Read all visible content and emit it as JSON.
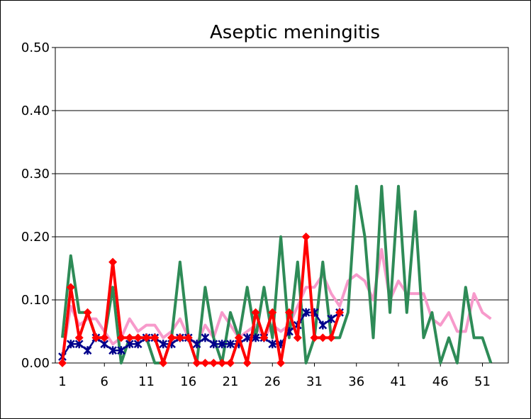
{
  "chart_data": {
    "type": "line",
    "title": "Aseptic meningitis",
    "xlabel": "",
    "ylabel": "",
    "ylim": [
      0,
      0.5
    ],
    "xlim": [
      1,
      53
    ],
    "y_ticks": [
      "0.00",
      "0.10",
      "0.20",
      "0.30",
      "0.40",
      "0.50"
    ],
    "x_ticks": [
      "1",
      "6",
      "11",
      "16",
      "21",
      "26",
      "31",
      "36",
      "41",
      "46",
      "51"
    ],
    "grid": "horizontal",
    "legend": "none",
    "series": [
      {
        "color": "#f79acb",
        "marker": "none",
        "x": [
          1,
          2,
          3,
          4,
          5,
          6,
          7,
          8,
          9,
          10,
          11,
          12,
          13,
          14,
          15,
          16,
          17,
          18,
          19,
          20,
          21,
          22,
          23,
          24,
          25,
          26,
          27,
          28,
          29,
          30,
          31,
          32,
          33,
          34,
          35,
          36,
          37,
          38,
          39,
          40,
          41,
          42,
          43,
          44,
          45,
          46,
          47,
          48,
          49,
          50,
          51,
          52
        ],
        "values": [
          0.01,
          0.09,
          0.06,
          0.07,
          0.07,
          0.05,
          0.03,
          0.04,
          0.07,
          0.05,
          0.06,
          0.06,
          0.04,
          0.05,
          0.07,
          0.04,
          0.03,
          0.06,
          0.04,
          0.08,
          0.06,
          0.04,
          0.05,
          0.06,
          0.04,
          0.06,
          0.05,
          0.06,
          0.09,
          0.12,
          0.12,
          0.14,
          0.11,
          0.09,
          0.13,
          0.14,
          0.13,
          0.1,
          0.18,
          0.1,
          0.13,
          0.11,
          0.11,
          0.11,
          0.07,
          0.06,
          0.08,
          0.05,
          0.05,
          0.11,
          0.08,
          0.07
        ]
      },
      {
        "color": "#2e8b57",
        "marker": "none",
        "x": [
          1,
          2,
          3,
          4,
          5,
          6,
          7,
          8,
          9,
          10,
          11,
          12,
          13,
          14,
          15,
          16,
          17,
          18,
          19,
          20,
          21,
          22,
          23,
          24,
          25,
          26,
          27,
          28,
          29,
          30,
          31,
          32,
          33,
          34,
          35,
          36,
          37,
          38,
          39,
          40,
          41,
          42,
          43,
          44,
          45,
          46,
          47,
          48,
          49,
          50,
          51,
          52
        ],
        "values": [
          0.04,
          0.17,
          0.08,
          0.08,
          0.04,
          0.04,
          0.12,
          0.0,
          0.04,
          0.04,
          0.04,
          0.0,
          0.0,
          0.04,
          0.16,
          0.04,
          0.0,
          0.12,
          0.04,
          0.0,
          0.08,
          0.04,
          0.12,
          0.04,
          0.12,
          0.04,
          0.2,
          0.04,
          0.16,
          0.0,
          0.04,
          0.16,
          0.04,
          0.04,
          0.08,
          0.28,
          0.2,
          0.04,
          0.28,
          0.08,
          0.28,
          0.08,
          0.24,
          0.04,
          0.08,
          0.0,
          0.04,
          0.0,
          0.12,
          0.04,
          0.04,
          0.0
        ]
      },
      {
        "color": "#00008b",
        "marker": "star",
        "x": [
          1,
          2,
          3,
          4,
          5,
          6,
          7,
          8,
          9,
          10,
          11,
          12,
          13,
          14,
          15,
          16,
          17,
          18,
          19,
          20,
          21,
          22,
          23,
          24,
          25,
          26,
          27,
          28,
          29,
          30,
          31,
          32,
          33,
          34
        ],
        "values": [
          0.01,
          0.03,
          0.03,
          0.02,
          0.04,
          0.03,
          0.02,
          0.02,
          0.03,
          0.03,
          0.04,
          0.04,
          0.03,
          0.03,
          0.04,
          0.04,
          0.03,
          0.04,
          0.03,
          0.03,
          0.03,
          0.03,
          0.04,
          0.04,
          0.04,
          0.03,
          0.03,
          0.05,
          0.06,
          0.08,
          0.08,
          0.06,
          0.07,
          0.08
        ]
      },
      {
        "color": "#ff0000",
        "marker": "diamond",
        "x": [
          1,
          2,
          3,
          4,
          5,
          6,
          7,
          8,
          9,
          10,
          11,
          12,
          13,
          14,
          15,
          16,
          17,
          18,
          19,
          20,
          21,
          22,
          23,
          24,
          25,
          26,
          27,
          28,
          29,
          30,
          31,
          32,
          33,
          34
        ],
        "values": [
          0.0,
          0.12,
          0.04,
          0.08,
          0.04,
          0.04,
          0.16,
          0.04,
          0.04,
          0.04,
          0.04,
          0.04,
          0.0,
          0.04,
          0.04,
          0.04,
          0.0,
          0.0,
          0.0,
          0.0,
          0.0,
          0.04,
          0.0,
          0.08,
          0.04,
          0.08,
          0.0,
          0.08,
          0.04,
          0.2,
          0.04,
          0.04,
          0.04,
          0.08
        ]
      }
    ]
  }
}
